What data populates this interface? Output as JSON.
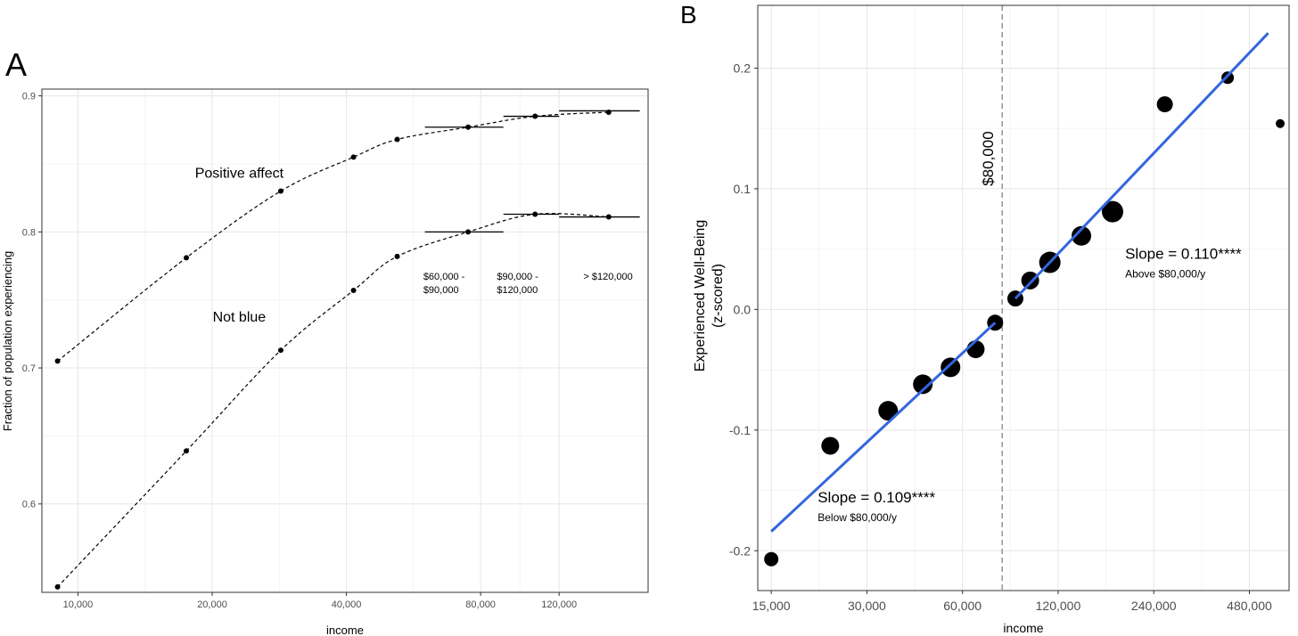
{
  "chart_data": [
    {
      "panel_letter": "A",
      "type": "line",
      "xlabel": "income",
      "ylabel": "Fraction of population experiencing",
      "x_scale": "log",
      "xlim": [
        8300,
        190000
      ],
      "ylim": [
        0.535,
        0.905
      ],
      "x_ticks": [
        {
          "value": 10000,
          "label": "10,000"
        },
        {
          "value": 20000,
          "label": "20,000"
        },
        {
          "value": 40000,
          "label": "40,000"
        },
        {
          "value": 80000,
          "label": "80,000"
        },
        {
          "value": 120000,
          "label": "120,000"
        }
      ],
      "y_ticks": [
        {
          "value": 0.6,
          "label": "0.6"
        },
        {
          "value": 0.7,
          "label": "0.7"
        },
        {
          "value": 0.8,
          "label": "0.8"
        },
        {
          "value": 0.9,
          "label": "0.9"
        }
      ],
      "grid": true,
      "series": [
        {
          "name": "Positive affect",
          "style": "dashed",
          "color": "#000000",
          "x": [
            9000,
            17500,
            28500,
            41500,
            52000,
            75000,
            106000,
            155000
          ],
          "y": [
            0.705,
            0.781,
            0.83,
            0.855,
            0.868,
            0.877,
            0.885,
            0.888
          ]
        },
        {
          "name": "Not blue",
          "style": "dashed",
          "color": "#000000",
          "x": [
            9000,
            17500,
            28500,
            41500,
            52000,
            75000,
            106000,
            155000
          ],
          "y": [
            0.539,
            0.639,
            0.713,
            0.757,
            0.782,
            0.8,
            0.813,
            0.811
          ]
        }
      ],
      "segments": [
        {
          "x0": 60000,
          "x1": 90000,
          "y": 0.877
        },
        {
          "x0": 90000,
          "x1": 120000,
          "y": 0.885
        },
        {
          "x0": 120000,
          "x1": 182000,
          "y": 0.889
        },
        {
          "x0": 60000,
          "x1": 90000,
          "y": 0.8
        },
        {
          "x0": 90000,
          "x1": 120000,
          "y": 0.813
        },
        {
          "x0": 120000,
          "x1": 182000,
          "y": 0.811
        }
      ],
      "annotations": [
        {
          "id": "positive-affect",
          "text": "Positive affect",
          "x": 23000,
          "y": 0.84
        },
        {
          "id": "not-blue",
          "text": "Not blue",
          "x": 23000,
          "y": 0.734
        },
        {
          "id": "range-1",
          "lines": [
            "$60,000 -",
            "$90,000"
          ],
          "x": 59500,
          "y": 0.765
        },
        {
          "id": "range-2",
          "lines": [
            "$90,000 -",
            "$120,000"
          ],
          "x": 87000,
          "y": 0.765
        },
        {
          "id": "range-3",
          "lines": [
            "> $120,000"
          ],
          "x": 136000,
          "y": 0.765
        }
      ]
    },
    {
      "panel_letter": "B",
      "type": "scatter",
      "xlabel": "income",
      "ylabel_lines": [
        "Experienced Well-Being",
        "(z-scored)"
      ],
      "x_scale": "log",
      "xlim": [
        13600,
        640000
      ],
      "ylim": [
        -0.233,
        0.252
      ],
      "x_ticks": [
        {
          "value": 15000,
          "label": "15,000"
        },
        {
          "value": 30000,
          "label": "30,000"
        },
        {
          "value": 60000,
          "label": "60,000"
        },
        {
          "value": 120000,
          "label": "120,000"
        },
        {
          "value": 240000,
          "label": "240,000"
        },
        {
          "value": 480000,
          "label": "480,000"
        }
      ],
      "y_ticks": [
        {
          "value": -0.2,
          "label": "-0.2"
        },
        {
          "value": -0.1,
          "label": "-0.1"
        },
        {
          "value": 0.0,
          "label": "0.0"
        },
        {
          "value": 0.1,
          "label": "0.1"
        },
        {
          "value": 0.2,
          "label": "0.2"
        }
      ],
      "grid": true,
      "points": [
        {
          "x": 15000,
          "y": -0.207,
          "size": 8
        },
        {
          "x": 23000,
          "y": -0.113,
          "size": 10
        },
        {
          "x": 35000,
          "y": -0.084,
          "size": 11
        },
        {
          "x": 45000,
          "y": -0.062,
          "size": 11
        },
        {
          "x": 55000,
          "y": -0.048,
          "size": 11
        },
        {
          "x": 66000,
          "y": -0.033,
          "size": 10
        },
        {
          "x": 76000,
          "y": -0.011,
          "size": 9
        },
        {
          "x": 88000,
          "y": 0.009,
          "size": 9
        },
        {
          "x": 98000,
          "y": 0.024,
          "size": 10
        },
        {
          "x": 113000,
          "y": 0.039,
          "size": 12
        },
        {
          "x": 142000,
          "y": 0.061,
          "size": 11
        },
        {
          "x": 178000,
          "y": 0.081,
          "size": 12
        },
        {
          "x": 260000,
          "y": 0.17,
          "size": 9
        },
        {
          "x": 410000,
          "y": 0.192,
          "size": 7
        },
        {
          "x": 600000,
          "y": 0.154,
          "size": 5
        }
      ],
      "fit_lines": [
        {
          "color": "#3366dd",
          "x0": 15000,
          "y0": -0.184,
          "x1": 76000,
          "y1": -0.011
        },
        {
          "color": "#3366dd",
          "x0": 88000,
          "y0": 0.009,
          "x1": 550000,
          "y1": 0.229
        }
      ],
      "threshold": {
        "x": 80000,
        "label": "$80,000",
        "style": "dashed",
        "color": "#9a9a9a"
      },
      "annotations": [
        {
          "id": "slope-below",
          "title": "Slope = 0.109****",
          "subtitle": "Below $80,000/y",
          "x": 21000,
          "y": -0.16
        },
        {
          "id": "slope-above",
          "title": "Slope = 0.110****",
          "subtitle": "Above $80,000/y",
          "x": 195000,
          "y": 0.042
        }
      ]
    }
  ]
}
